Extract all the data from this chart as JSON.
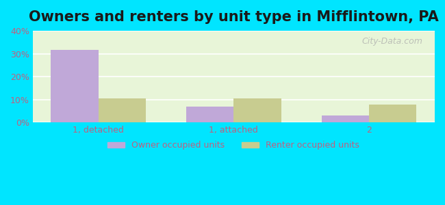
{
  "title": "Owners and renters by unit type in Mifflintown, PA",
  "categories": [
    "1, detached",
    "1, attached",
    "2"
  ],
  "owner_values": [
    31.5,
    7.0,
    3.0
  ],
  "renter_values": [
    10.5,
    10.5,
    8.0
  ],
  "owner_color": "#c0a8d8",
  "renter_color": "#c8cc90",
  "ylim": [
    0,
    40
  ],
  "yticks": [
    0,
    10,
    20,
    30,
    40
  ],
  "ytick_labels": [
    "0%",
    "10%",
    "20%",
    "30%",
    "40%"
  ],
  "bar_width": 0.35,
  "background_color": "#e8f5d8",
  "outer_background": "#00e5ff",
  "title_fontsize": 15,
  "legend_labels": [
    "Owner occupied units",
    "Renter occupied units"
  ],
  "watermark": "City-Data.com",
  "grid_color": "#ffffff",
  "axis_text_color": "#c06080"
}
